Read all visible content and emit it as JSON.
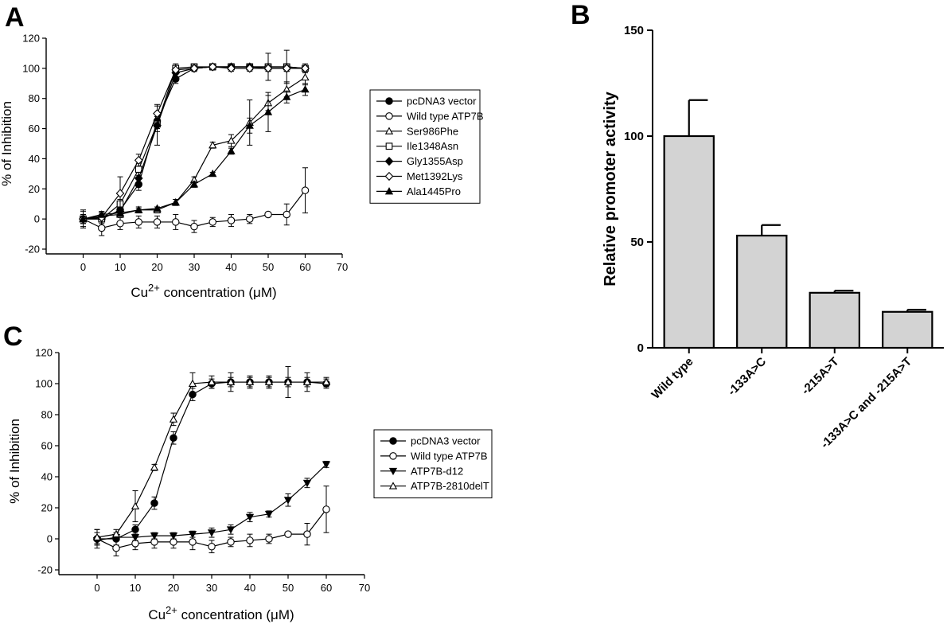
{
  "panels": {
    "A": {
      "letter": "A"
    },
    "B": {
      "letter": "B"
    },
    "C": {
      "letter": "C"
    }
  },
  "chart_data": [
    {
      "id": "A",
      "type": "line",
      "xlabel_base": "Cu",
      "xlabel_sup": "2+",
      "xlabel_rest": " concentration (μM)",
      "ylabel": "% of Inhibition",
      "xlim": [
        -10,
        70
      ],
      "ylim": [
        -20,
        120
      ],
      "xticks": [
        0,
        10,
        20,
        30,
        40,
        50,
        60,
        70
      ],
      "yticks": [
        -20,
        0,
        20,
        40,
        60,
        80,
        100,
        120
      ],
      "legend_position": "right",
      "x": [
        0,
        5,
        10,
        15,
        20,
        25,
        30,
        35,
        40,
        45,
        50,
        55,
        60
      ],
      "series": [
        {
          "name": "pcDNA3 vector",
          "marker": "circle-filled",
          "values": [
            0,
            0,
            6,
            23,
            65,
            93,
            100,
            101,
            101,
            101,
            101,
            101,
            100
          ],
          "errors": [
            5,
            5,
            3,
            4,
            5,
            3,
            2,
            2,
            2,
            2,
            2,
            2,
            2
          ]
        },
        {
          "name": "Wild type ATP7B",
          "marker": "circle-open",
          "values": [
            0,
            -6,
            -3,
            -2,
            -2,
            -2,
            -5,
            -2,
            -1,
            0,
            3,
            3,
            19
          ],
          "errors": [
            6,
            5,
            4,
            4,
            4,
            5,
            4,
            3,
            4,
            3,
            1,
            7,
            15
          ]
        },
        {
          "name": "Ser986Phe",
          "marker": "triangle-open",
          "values": [
            0,
            2,
            3,
            6,
            6,
            11,
            26,
            49,
            52,
            64,
            77,
            86,
            94
          ],
          "errors": [
            2,
            2,
            2,
            2,
            2,
            2,
            2,
            2,
            4,
            15,
            5,
            5,
            5
          ]
        },
        {
          "name": "Ile1348Asn",
          "marker": "square-open",
          "values": [
            0,
            0,
            10,
            33,
            63,
            100,
            101,
            101,
            101,
            101,
            101,
            101,
            100
          ],
          "errors": [
            3,
            3,
            3,
            4,
            5,
            3,
            2,
            2,
            2,
            2,
            9,
            11,
            3
          ]
        },
        {
          "name": "Gly1355Asp",
          "marker": "diamond-filled",
          "values": [
            0,
            1,
            5,
            27,
            62,
            97,
            100,
            101,
            101,
            101,
            100,
            100,
            100
          ],
          "errors": [
            3,
            3,
            3,
            4,
            13,
            3,
            2,
            2,
            2,
            2,
            2,
            2,
            2
          ]
        },
        {
          "name": "Met1392Lys",
          "marker": "diamond-open",
          "values": [
            0,
            1,
            17,
            39,
            70,
            99,
            100,
            101,
            100,
            100,
            100,
            100,
            100
          ],
          "errors": [
            3,
            3,
            11,
            4,
            6,
            3,
            2,
            2,
            2,
            2,
            2,
            2,
            2
          ]
        },
        {
          "name": "Ala1445Pro",
          "marker": "triangle-filled",
          "values": [
            0,
            3,
            4,
            6,
            7,
            11,
            23,
            30,
            45,
            62,
            71,
            81,
            86
          ],
          "errors": [
            2,
            2,
            2,
            1,
            1,
            2,
            2,
            1,
            2,
            5,
            13,
            4,
            4
          ]
        }
      ]
    },
    {
      "id": "B",
      "type": "bar",
      "ylabel": "Relative promoter activity",
      "ylim": [
        0,
        150
      ],
      "yticks": [
        0,
        50,
        100,
        150
      ],
      "categories": [
        "Wild type",
        "-133A>C",
        "-215A>T",
        "-133A>C and -215A>T"
      ],
      "values": [
        100,
        53,
        26,
        17
      ],
      "errors": [
        17,
        5,
        1,
        1
      ],
      "bar_color": "#d3d3d3"
    },
    {
      "id": "C",
      "type": "line",
      "xlabel_base": "Cu",
      "xlabel_sup": "2+",
      "xlabel_rest": " concentration (μM)",
      "ylabel": "% of Inhibition",
      "xlim": [
        -10,
        70
      ],
      "ylim": [
        -20,
        120
      ],
      "xticks": [
        0,
        10,
        20,
        30,
        40,
        50,
        60,
        70
      ],
      "yticks": [
        -20,
        0,
        20,
        40,
        60,
        80,
        100,
        120
      ],
      "legend_position": "right",
      "x": [
        0,
        5,
        10,
        15,
        20,
        25,
        30,
        35,
        40,
        45,
        50,
        55,
        60
      ],
      "series": [
        {
          "name": "pcDNA3 vector",
          "marker": "circle-filled",
          "values": [
            0,
            0,
            6,
            23,
            65,
            93,
            100,
            101,
            101,
            101,
            101,
            101,
            100
          ],
          "errors": [
            6,
            4,
            3,
            4,
            4,
            4,
            3,
            3,
            3,
            3,
            3,
            3,
            3
          ]
        },
        {
          "name": "Wild type ATP7B",
          "marker": "circle-open",
          "values": [
            0,
            -6,
            -3,
            -2,
            -2,
            -2,
            -5,
            -2,
            -1,
            0,
            3,
            3,
            19
          ],
          "errors": [
            4,
            5,
            4,
            4,
            4,
            5,
            4,
            3,
            4,
            3,
            1,
            7,
            15
          ]
        },
        {
          "name": "ATP7B-d12",
          "marker": "triangle-down-filled",
          "values": [
            -1,
            1,
            1,
            2,
            2,
            3,
            4,
            6,
            14,
            16,
            25,
            36,
            48
          ],
          "errors": [
            2,
            2,
            2,
            2,
            2,
            2,
            3,
            3,
            3,
            2,
            4,
            3,
            2
          ]
        },
        {
          "name": "ATP7B-2810delT",
          "marker": "triangle-open",
          "values": [
            1,
            3,
            21,
            46,
            77,
            100,
            101,
            101,
            101,
            101,
            101,
            101,
            101
          ],
          "errors": [
            5,
            3,
            10,
            2,
            4,
            7,
            4,
            6,
            4,
            4,
            10,
            6,
            3
          ]
        }
      ]
    }
  ]
}
